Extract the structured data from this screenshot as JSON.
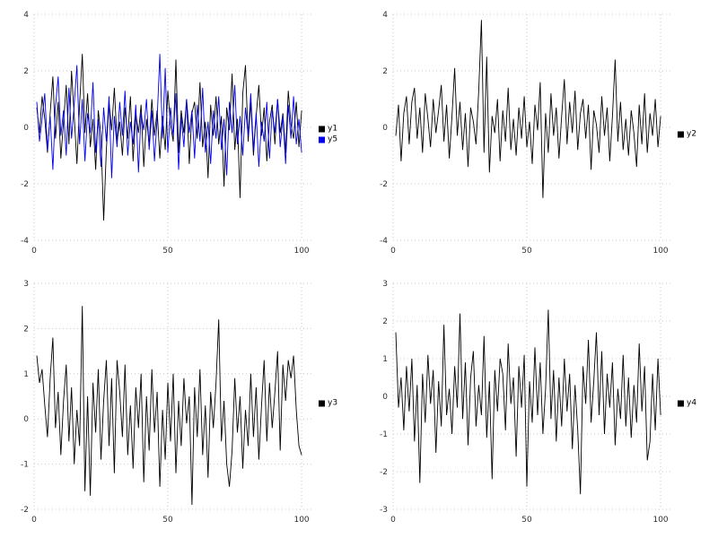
{
  "page": {
    "background": "#ffffff",
    "grid_color": "#c8c8c8",
    "tick_color": "#303030"
  },
  "chart_data": [
    {
      "type": "line",
      "title": "",
      "xlabel": "",
      "ylabel": "",
      "xlim": [
        0,
        104
      ],
      "ylim": [
        -4,
        4
      ],
      "xticks": [
        0,
        50,
        100
      ],
      "yticks": [
        -4,
        -2,
        0,
        2,
        4
      ],
      "grid": "dotted",
      "legend_position": "right",
      "x_start": 1,
      "x_step": 1,
      "series": [
        {
          "name": "y1",
          "color": "#000000",
          "values": [
            0.7,
            -0.2,
            1.1,
            0.3,
            -0.9,
            0.5,
            1.8,
            -0.4,
            0.9,
            -1.1,
            0.2,
            1.5,
            -0.6,
            2.0,
            0.4,
            -1.3,
            0.8,
            2.6,
            -0.2,
            1.2,
            -0.7,
            0.3,
            -1.5,
            0.6,
            -0.3,
            -3.3,
            -0.8,
            0.9,
            -0.1,
            1.4,
            -0.5,
            0.2,
            -1.0,
            0.7,
            -0.4,
            1.1,
            -1.2,
            0.5,
            -0.2,
            0.8,
            -1.4,
            0.3,
            -0.6,
            1.0,
            -0.3,
            0.6,
            -1.1,
            0.4,
            -0.8,
            1.3,
            0.1,
            -0.5,
            2.4,
            -0.9,
            0.6,
            -0.2,
            1.0,
            -1.3,
            0.5,
            0.9,
            -0.4,
            1.6,
            -0.7,
            0.2,
            -1.8,
            0.8,
            -0.3,
            1.1,
            -0.6,
            0.4,
            -2.1,
            0.7,
            -0.1,
            1.9,
            -0.8,
            0.3,
            -2.5,
            1.2,
            2.2,
            -0.5,
            0.9,
            -1.0,
            0.4,
            1.5,
            -0.3,
            0.7,
            -1.2,
            0.2,
            0.8,
            -0.6,
            1.0,
            -0.2,
            0.5,
            -0.9,
            1.3,
            0.1,
            -0.4,
            0.9,
            -0.7,
            0.6
          ]
        },
        {
          "name": "y5",
          "color": "#0000ee",
          "values": [
            0.9,
            -0.5,
            0.3,
            1.2,
            -0.8,
            0.4,
            -1.5,
            0.7,
            1.8,
            -0.3,
            0.6,
            -1.0,
            1.4,
            -0.4,
            0.8,
            2.2,
            -0.6,
            1.0,
            -1.2,
            0.5,
            -0.2,
            1.6,
            -0.9,
            0.3,
            -1.4,
            0.7,
            -0.5,
            1.1,
            -1.8,
            0.4,
            -0.7,
            0.9,
            -0.3,
            1.3,
            -1.0,
            0.2,
            -0.6,
            0.8,
            -1.6,
            0.5,
            -0.1,
            1.0,
            -0.8,
            0.6,
            -1.2,
            0.3,
            2.6,
            -0.4,
            2.1,
            -0.9,
            0.7,
            -0.3,
            1.2,
            -1.5,
            0.4,
            -0.7,
            1.0,
            -0.2,
            0.6,
            -1.1,
            0.8,
            -0.5,
            1.4,
            -0.9,
            0.2,
            -1.3,
            0.6,
            -0.4,
            1.1,
            -0.8,
            0.3,
            -1.7,
            0.9,
            -0.2,
            1.5,
            -0.6,
            0.4,
            -1.0,
            0.7,
            -0.3,
            1.2,
            -0.8,
            0.5,
            -1.4,
            0.2,
            -0.5,
            0.9,
            -1.1,
            0.6,
            -0.2,
            1.0,
            -0.7,
            0.4,
            -1.3,
            0.8,
            -0.4,
            1.1,
            -0.6,
            0.3,
            -0.9
          ]
        }
      ]
    },
    {
      "type": "line",
      "title": "",
      "xlabel": "",
      "ylabel": "",
      "xlim": [
        0,
        104
      ],
      "ylim": [
        -4,
        4
      ],
      "xticks": [
        0,
        50,
        100
      ],
      "yticks": [
        -4,
        -2,
        0,
        2,
        4
      ],
      "grid": "dotted",
      "legend_position": "right",
      "x_start": 1,
      "x_step": 1,
      "series": [
        {
          "name": "y2",
          "color": "#000000",
          "values": [
            -0.3,
            0.8,
            -1.2,
            0.5,
            1.1,
            -0.6,
            0.9,
            1.4,
            -0.4,
            0.7,
            -0.9,
            1.2,
            0.3,
            -0.7,
            1.0,
            -0.2,
            0.6,
            1.5,
            -0.5,
            0.8,
            -1.1,
            0.4,
            2.1,
            -0.3,
            0.9,
            -0.8,
            0.5,
            -1.4,
            0.7,
            0.2,
            -0.6,
            1.3,
            3.8,
            -0.9,
            2.5,
            -1.6,
            0.4,
            -0.2,
            1.0,
            -1.2,
            0.6,
            -0.5,
            1.4,
            -0.8,
            0.3,
            -1.0,
            0.7,
            -0.4,
            1.1,
            -0.7,
            0.2,
            -1.3,
            0.8,
            -0.1,
            1.6,
            -2.5,
            0.5,
            -0.9,
            1.2,
            -0.3,
            0.7,
            -1.1,
            0.4,
            1.7,
            -0.6,
            0.9,
            -0.2,
            1.3,
            -0.8,
            0.5,
            1.0,
            -0.4,
            0.8,
            -1.5,
            0.6,
            0.1,
            -0.9,
            1.1,
            -0.3,
            0.7,
            -1.2,
            0.4,
            2.4,
            -0.5,
            0.9,
            -0.8,
            0.3,
            -1.0,
            0.6,
            -0.2,
            -1.4,
            0.8,
            -0.6,
            1.2,
            -0.9,
            0.5,
            -0.3,
            1.0,
            -0.7,
            0.4
          ]
        }
      ]
    },
    {
      "type": "line",
      "title": "",
      "xlabel": "",
      "ylabel": "",
      "xlim": [
        0,
        104
      ],
      "ylim": [
        -2,
        3
      ],
      "xticks": [
        0,
        50,
        100
      ],
      "yticks": [
        -2,
        -1,
        0,
        1,
        2,
        3
      ],
      "grid": "dotted",
      "legend_position": "right",
      "x_start": 1,
      "x_step": 1,
      "series": [
        {
          "name": "y3",
          "color": "#000000",
          "values": [
            1.4,
            0.8,
            1.1,
            0.3,
            -0.4,
            0.9,
            1.8,
            -0.2,
            0.6,
            -0.8,
            0.4,
            1.2,
            -0.5,
            0.7,
            -1.0,
            0.2,
            -0.6,
            2.5,
            -1.6,
            0.5,
            -1.7,
            0.8,
            -0.3,
            1.1,
            -0.9,
            0.4,
            1.3,
            -0.6,
            0.9,
            -1.2,
            1.3,
            0.6,
            -0.4,
            1.2,
            -0.8,
            0.3,
            -1.1,
            0.7,
            -0.2,
            1.0,
            -1.4,
            0.5,
            -0.7,
            1.1,
            -0.3,
            0.6,
            -1.5,
            0.2,
            -0.9,
            0.8,
            -0.5,
            1.0,
            -1.2,
            0.4,
            -0.6,
            0.9,
            -0.1,
            0.5,
            -1.9,
            0.7,
            -0.4,
            1.1,
            -0.8,
            0.3,
            -1.3,
            0.6,
            -0.2,
            0.8,
            2.2,
            -0.5,
            0.4,
            -1.0,
            -1.5,
            -0.7,
            0.9,
            -0.3,
            0.5,
            -1.1,
            0.2,
            -0.6,
            1.0,
            -0.4,
            0.7,
            -0.9,
            0.3,
            1.3,
            -0.5,
            0.8,
            -0.2,
            0.6,
            1.5,
            -0.7,
            1.2,
            0.4,
            1.3,
            0.9,
            1.4,
            0.2,
            -0.6,
            -0.8
          ]
        }
      ]
    },
    {
      "type": "line",
      "title": "",
      "xlabel": "",
      "ylabel": "",
      "xlim": [
        0,
        104
      ],
      "ylim": [
        -3,
        3
      ],
      "xticks": [
        0,
        50,
        100
      ],
      "yticks": [
        -3,
        -2,
        -1,
        0,
        1,
        2,
        3
      ],
      "grid": "dotted",
      "legend_position": "right",
      "x_start": 1,
      "x_step": 1,
      "series": [
        {
          "name": "y4",
          "color": "#000000",
          "values": [
            1.7,
            -0.3,
            0.5,
            -0.9,
            0.8,
            -0.4,
            1.0,
            -1.2,
            0.3,
            -2.3,
            0.6,
            -0.7,
            1.1,
            -0.2,
            0.7,
            -1.5,
            0.4,
            -0.8,
            1.9,
            -0.5,
            0.2,
            -1.0,
            0.8,
            -0.3,
            2.2,
            -0.6,
            0.9,
            -1.3,
            0.5,
            1.2,
            -0.8,
            0.3,
            -0.5,
            1.6,
            -1.1,
            0.4,
            -2.2,
            0.7,
            -0.4,
            1.0,
            0.6,
            -0.9,
            1.4,
            -0.2,
            0.5,
            -1.6,
            0.8,
            -0.3,
            1.1,
            -2.4,
            0.4,
            -0.7,
            1.3,
            -0.5,
            0.9,
            -1.0,
            0.2,
            2.3,
            -0.6,
            0.7,
            -1.2,
            0.5,
            -0.8,
            1.0,
            -0.4,
            0.6,
            -1.4,
            0.3,
            -0.9,
            -2.6,
            0.8,
            -0.2,
            1.5,
            -0.7,
            0.4,
            1.7,
            -0.5,
            1.2,
            -1.0,
            0.6,
            -0.3,
            0.9,
            -1.3,
            0.2,
            -0.6,
            1.1,
            -0.8,
            0.5,
            -1.1,
            0.3,
            -0.7,
            1.4,
            -0.4,
            0.8,
            -1.7,
            -1.2,
            0.6,
            -0.9,
            1.0,
            -0.5
          ]
        }
      ]
    }
  ]
}
